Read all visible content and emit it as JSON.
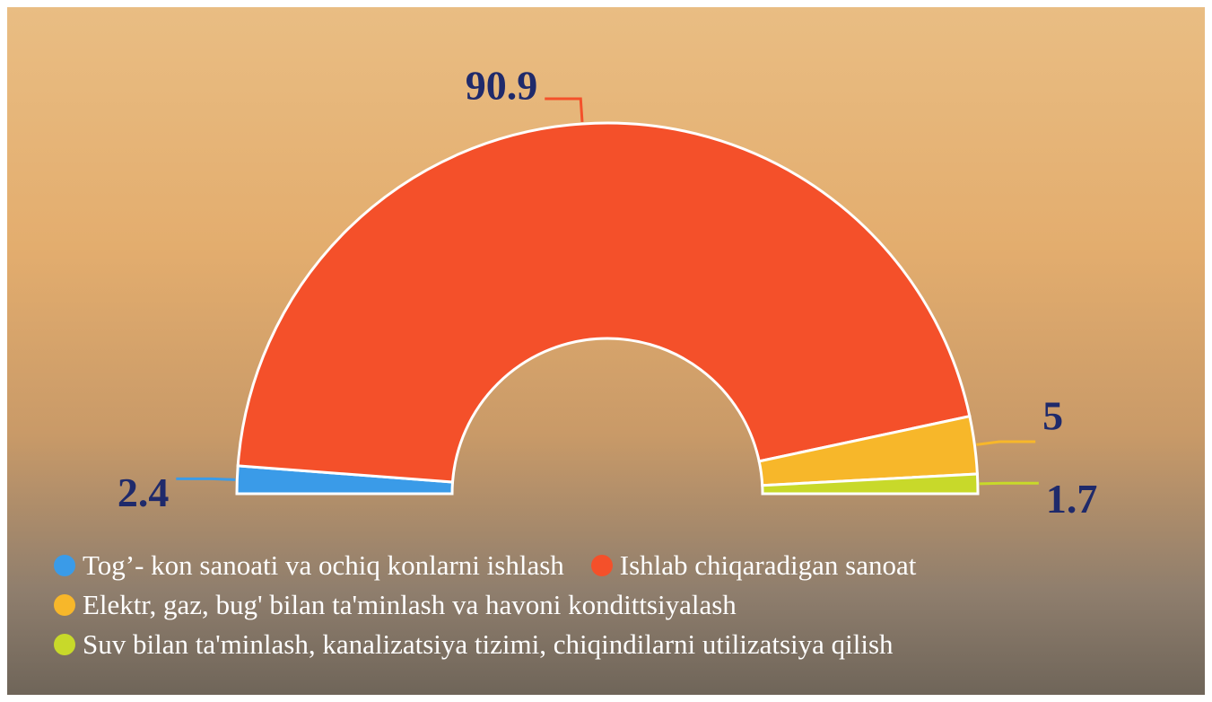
{
  "chart_data": {
    "type": "half-donut",
    "categories": [
      "Tog’- kon sanoati va ochiq konlarni ishlash",
      "Ishlab chiqaradigan sanoat",
      "Elektr, gaz, bug' bilan ta'minlash va havoni kondittsiyalash",
      "Suv bilan ta'minlash, kanalizatsiya tizimi, chiqindilarni utilizatsiya qilish"
    ],
    "values": [
      2.4,
      90.9,
      5,
      1.7
    ],
    "colors": [
      "#3a9be8",
      "#f4502a",
      "#f7b72a",
      "#c8d92a"
    ],
    "legend": "bottom"
  }
}
